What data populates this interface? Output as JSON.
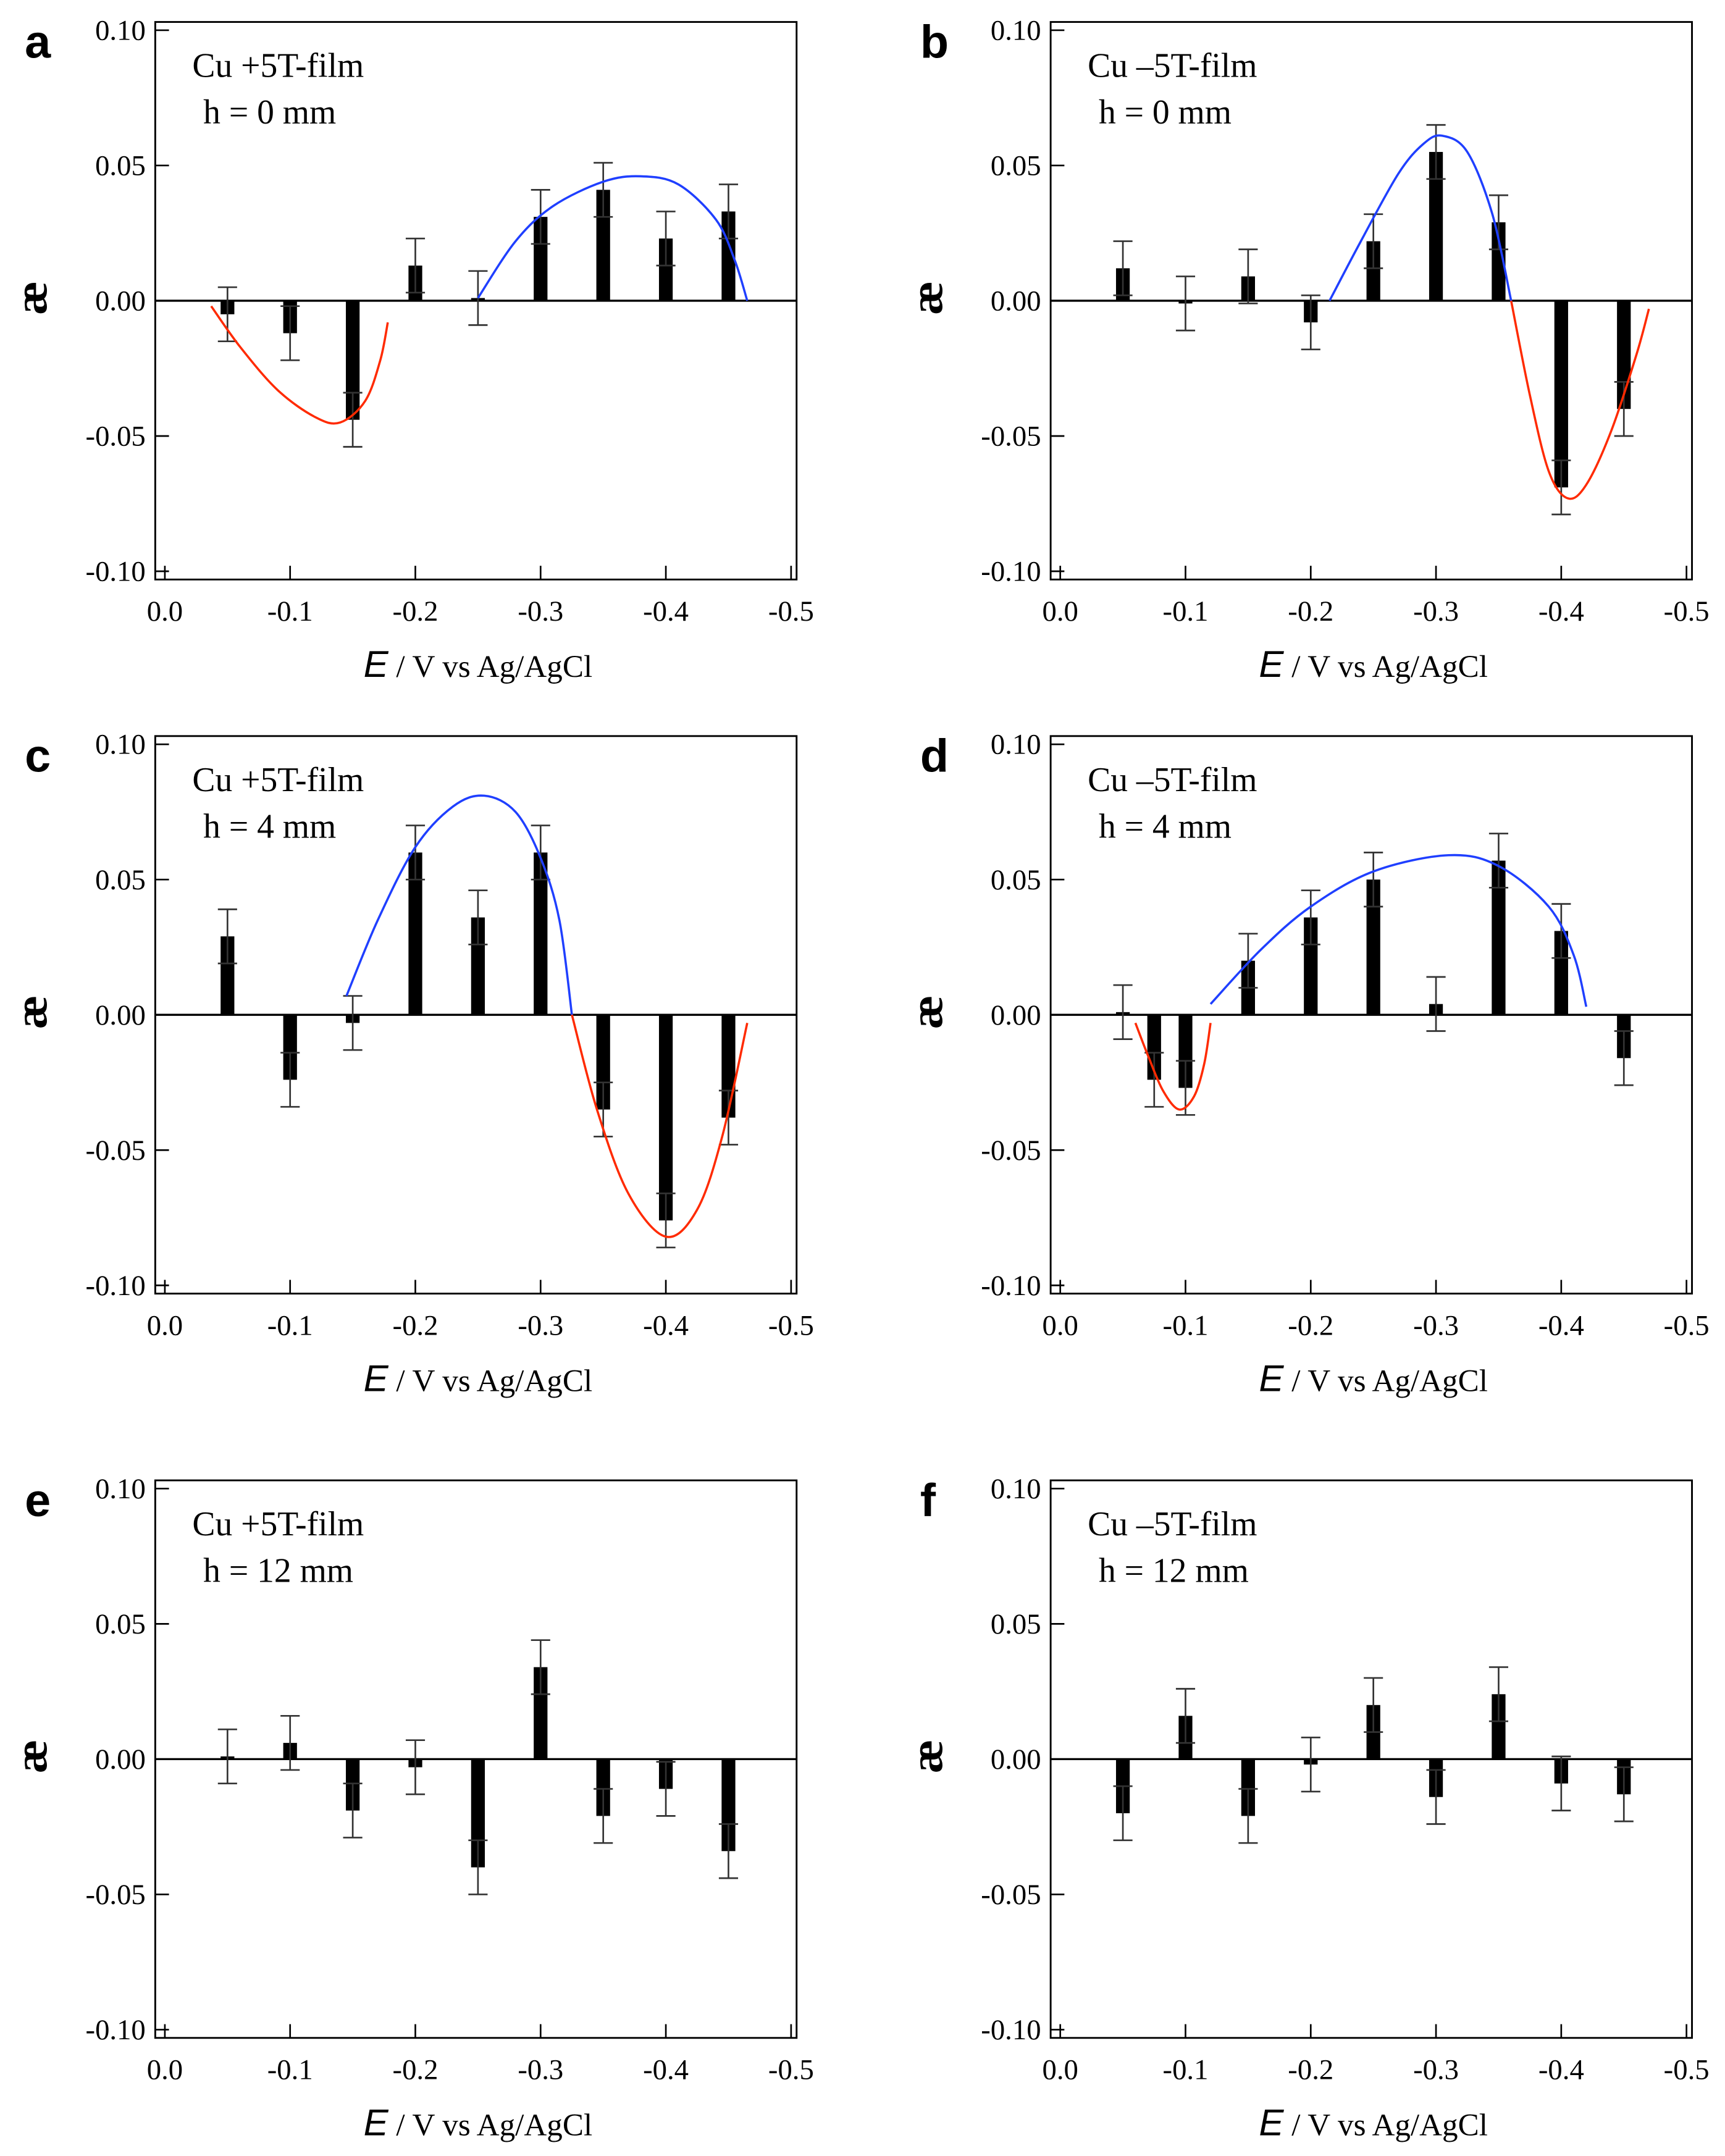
{
  "chart_data": [
    {
      "panel": "a",
      "type": "bar",
      "annotation": [
        "Cu +5T-film",
        "h = 0 mm"
      ],
      "x": [
        -0.05,
        -0.1,
        -0.15,
        -0.2,
        -0.25,
        -0.3,
        -0.35,
        -0.4,
        -0.45
      ],
      "values": [
        -0.005,
        -0.012,
        -0.044,
        0.013,
        0.001,
        0.031,
        0.041,
        0.023,
        0.033
      ],
      "error": 0.01,
      "fits": [
        {
          "color": "#ff2a00",
          "points": [
            [
              -0.037,
              -0.002
            ],
            [
              -0.06,
              -0.017
            ],
            [
              -0.09,
              -0.033
            ],
            [
              -0.12,
              -0.043
            ],
            [
              -0.14,
              -0.045
            ],
            [
              -0.16,
              -0.037
            ],
            [
              -0.172,
              -0.022
            ],
            [
              -0.178,
              -0.008
            ]
          ]
        },
        {
          "color": "#1f3fff",
          "points": [
            [
              -0.25,
              0.001
            ],
            [
              -0.28,
              0.022
            ],
            [
              -0.31,
              0.035
            ],
            [
              -0.35,
              0.044
            ],
            [
              -0.38,
              0.046
            ],
            [
              -0.41,
              0.043
            ],
            [
              -0.44,
              0.03
            ],
            [
              -0.455,
              0.015
            ],
            [
              -0.465,
              0.0
            ]
          ]
        }
      ]
    },
    {
      "panel": "b",
      "type": "bar",
      "annotation": [
        "Cu –5T-film",
        "h = 0 mm"
      ],
      "x": [
        -0.05,
        -0.1,
        -0.15,
        -0.2,
        -0.25,
        -0.3,
        -0.35,
        -0.4,
        -0.45
      ],
      "values": [
        0.012,
        -0.001,
        0.009,
        -0.008,
        0.022,
        0.055,
        0.029,
        -0.069,
        -0.04
      ],
      "error": 0.01,
      "fits": [
        {
          "color": "#1f3fff",
          "points": [
            [
              -0.215,
              0.0
            ],
            [
              -0.24,
              0.022
            ],
            [
              -0.27,
              0.047
            ],
            [
              -0.29,
              0.058
            ],
            [
              -0.305,
              0.061
            ],
            [
              -0.325,
              0.055
            ],
            [
              -0.345,
              0.032
            ],
            [
              -0.36,
              0.0
            ]
          ]
        },
        {
          "color": "#ff2a00",
          "points": [
            [
              -0.36,
              0.0
            ],
            [
              -0.375,
              -0.035
            ],
            [
              -0.39,
              -0.063
            ],
            [
              -0.405,
              -0.073
            ],
            [
              -0.42,
              -0.068
            ],
            [
              -0.44,
              -0.048
            ],
            [
              -0.46,
              -0.02
            ],
            [
              -0.47,
              -0.003
            ]
          ]
        }
      ]
    },
    {
      "panel": "c",
      "type": "bar",
      "annotation": [
        "Cu +5T-film",
        "h = 4 mm"
      ],
      "x": [
        -0.05,
        -0.1,
        -0.15,
        -0.2,
        -0.25,
        -0.3,
        -0.35,
        -0.4,
        -0.45
      ],
      "values": [
        0.029,
        -0.024,
        -0.003,
        0.06,
        0.036,
        0.06,
        -0.035,
        -0.076,
        -0.038
      ],
      "error": 0.01,
      "fits": [
        {
          "color": "#1f3fff",
          "points": [
            [
              -0.145,
              0.007
            ],
            [
              -0.17,
              0.035
            ],
            [
              -0.2,
              0.062
            ],
            [
              -0.23,
              0.077
            ],
            [
              -0.255,
              0.081
            ],
            [
              -0.28,
              0.075
            ],
            [
              -0.3,
              0.058
            ],
            [
              -0.315,
              0.035
            ],
            [
              -0.325,
              0.0
            ]
          ]
        },
        {
          "color": "#ff2a00",
          "points": [
            [
              -0.325,
              0.0
            ],
            [
              -0.345,
              -0.035
            ],
            [
              -0.37,
              -0.066
            ],
            [
              -0.4,
              -0.082
            ],
            [
              -0.425,
              -0.072
            ],
            [
              -0.445,
              -0.045
            ],
            [
              -0.465,
              -0.003
            ]
          ]
        }
      ]
    },
    {
      "panel": "d",
      "type": "bar",
      "annotation": [
        "Cu –5T-film",
        "h = 4 mm"
      ],
      "x": [
        -0.05,
        -0.075,
        -0.1,
        -0.15,
        -0.2,
        -0.25,
        -0.3,
        -0.35,
        -0.4,
        -0.45
      ],
      "values": [
        0.001,
        -0.024,
        -0.027,
        0.02,
        0.036,
        0.05,
        0.004,
        0.057,
        0.031,
        -0.016
      ],
      "error": 0.01,
      "fits": [
        {
          "color": "#ff2a00",
          "points": [
            [
              -0.06,
              -0.003
            ],
            [
              -0.07,
              -0.015
            ],
            [
              -0.082,
              -0.028
            ],
            [
              -0.095,
              -0.035
            ],
            [
              -0.107,
              -0.03
            ],
            [
              -0.115,
              -0.018
            ],
            [
              -0.12,
              -0.003
            ]
          ]
        },
        {
          "color": "#1f3fff",
          "points": [
            [
              -0.12,
              0.004
            ],
            [
              -0.16,
              0.024
            ],
            [
              -0.2,
              0.04
            ],
            [
              -0.25,
              0.053
            ],
            [
              -0.31,
              0.059
            ],
            [
              -0.35,
              0.055
            ],
            [
              -0.39,
              0.04
            ],
            [
              -0.41,
              0.022
            ],
            [
              -0.42,
              0.003
            ]
          ]
        }
      ]
    },
    {
      "panel": "e",
      "type": "bar",
      "annotation": [
        "Cu +5T-film",
        "h = 12 mm"
      ],
      "x": [
        -0.05,
        -0.1,
        -0.15,
        -0.2,
        -0.25,
        -0.3,
        -0.35,
        -0.4,
        -0.45
      ],
      "values": [
        0.001,
        0.006,
        -0.019,
        -0.003,
        -0.04,
        0.034,
        -0.021,
        -0.011,
        -0.034
      ],
      "error": 0.01,
      "fits": []
    },
    {
      "panel": "f",
      "type": "bar",
      "annotation": [
        "Cu –5T-film",
        "h = 12 mm"
      ],
      "x": [
        -0.05,
        -0.1,
        -0.15,
        -0.2,
        -0.25,
        -0.3,
        -0.35,
        -0.4,
        -0.45
      ],
      "values": [
        -0.02,
        0.016,
        -0.021,
        -0.002,
        0.02,
        -0.014,
        0.024,
        -0.009,
        -0.013
      ],
      "error": 0.01,
      "fits": []
    }
  ],
  "axes": {
    "xlim": [
      0.0,
      -0.5
    ],
    "ylim": [
      -0.1,
      0.1
    ],
    "x_ticks": [
      "0.0",
      "-0.1",
      "-0.2",
      "-0.3",
      "-0.4",
      "-0.5"
    ],
    "x_tick_values": [
      0,
      -0.1,
      -0.2,
      -0.3,
      -0.4,
      -0.5
    ],
    "y_ticks": [
      "0.10",
      "0.05",
      "0.00",
      "-0.05",
      "-0.10"
    ],
    "y_tick_values": [
      0.1,
      0.05,
      0,
      -0.05,
      -0.1
    ],
    "xlabel_italic": "E",
    "xlabel_rest": "/ V vs Ag/AgCl",
    "ylabel": "æ"
  }
}
